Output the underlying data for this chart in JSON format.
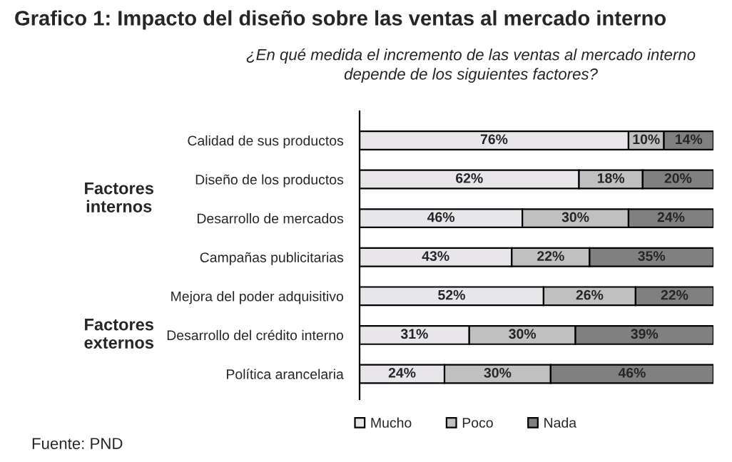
{
  "chart_data": {
    "type": "bar",
    "orientation": "horizontal",
    "stacked": true,
    "legend": "bottom",
    "title": "Grafico 1: Impacto del diseño sobre las ventas al mercado interno",
    "subtitle": "¿En qué medida el incremento de las ventas al mercado interno\ndepende de los siguientes factores?",
    "categories": [
      "Calidad de sus productos",
      "Diseño de los productos",
      "Desarrollo de mercados",
      "Campañas publicitarias",
      "Mejora del poder adquisitivo",
      "Desarrollo del crédito interno",
      "Política arancelaria"
    ],
    "series": [
      {
        "name": "Mucho",
        "color": "#e8e6ea",
        "values": [
          76,
          62,
          46,
          43,
          52,
          31,
          24
        ],
        "value_labels": [
          "76%",
          "62%",
          "46%",
          "43%",
          "52%",
          "31%",
          "24%"
        ]
      },
      {
        "name": "Poco",
        "color": "#c0c0c0",
        "values": [
          10,
          18,
          30,
          22,
          26,
          30,
          30
        ],
        "value_labels": [
          "10%",
          "18%",
          "30%",
          "22%",
          "26%",
          "30%",
          "30%"
        ]
      },
      {
        "name": "Nada",
        "color": "#808080",
        "values": [
          14,
          20,
          24,
          35,
          22,
          39,
          46
        ],
        "value_labels": [
          "14%",
          "20%",
          "24%",
          "35%",
          "22%",
          "39%",
          "46%"
        ]
      }
    ],
    "annotations": [
      "Factores internos",
      "Factores externos",
      "Fuente: PND"
    ]
  }
}
